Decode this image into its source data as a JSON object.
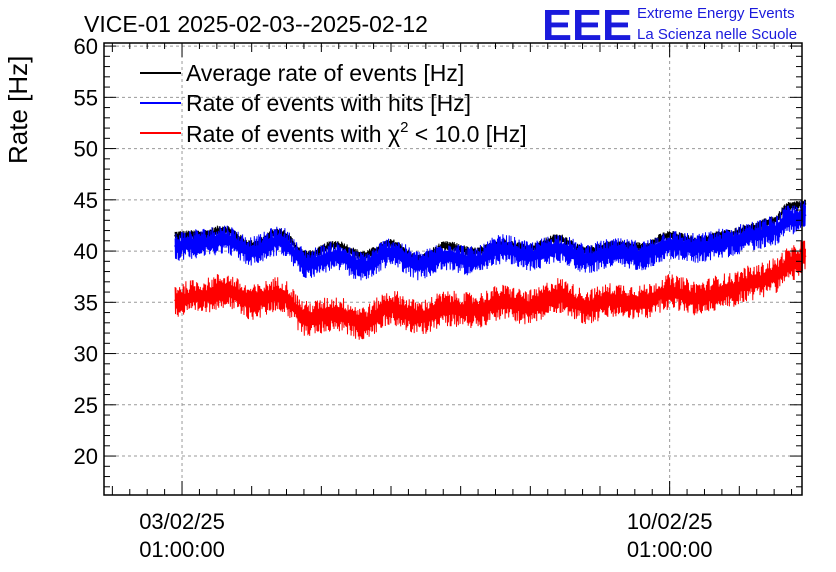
{
  "chart_data": {
    "type": "line",
    "title": "VICE-01 2025-02-03--2025-02-12",
    "xlabel": "",
    "ylabel": "Rate [Hz]",
    "ylim": [
      16.2,
      60.3
    ],
    "yticks": [
      20,
      25,
      30,
      35,
      40,
      45,
      50,
      55,
      60
    ],
    "x_range_days": [
      -1.12,
      8.9
    ],
    "x_ticks": [
      {
        "day": 0,
        "date": "03/02/25",
        "time": "01:00:00"
      },
      {
        "day": 7,
        "date": "10/02/25",
        "time": "01:00:00"
      }
    ],
    "grid": true,
    "legend_position": "top-left",
    "series": [
      {
        "name": "Average rate of events [Hz]",
        "color": "#000000",
        "x_days": [
          -0.1,
          0.3,
          0.6,
          1.0,
          1.4,
          1.8,
          2.2,
          2.6,
          3.0,
          3.4,
          3.8,
          4.2,
          4.6,
          5.0,
          5.4,
          5.8,
          6.2,
          6.6,
          7.0,
          7.4,
          7.8,
          8.2,
          8.5,
          8.7,
          8.95
        ],
        "values": [
          41.5,
          41.6,
          42.1,
          40.6,
          41.8,
          39.6,
          40.6,
          39.6,
          40.7,
          39.2,
          40.5,
          39.9,
          40.7,
          40.3,
          41.2,
          40.0,
          40.6,
          40.4,
          41.5,
          41.0,
          41.6,
          42.3,
          43.0,
          44.3,
          44.6
        ]
      },
      {
        "name": "Rate of events with hits [Hz]",
        "color": "#0000ff",
        "x_days": [
          -0.1,
          0.3,
          0.6,
          1.0,
          1.4,
          1.8,
          2.2,
          2.6,
          3.0,
          3.4,
          3.8,
          4.2,
          4.6,
          5.0,
          5.4,
          5.8,
          6.2,
          6.6,
          7.0,
          7.4,
          7.8,
          8.2,
          8.5,
          8.7,
          8.95
        ],
        "values": [
          40.5,
          40.8,
          41.2,
          40.0,
          41.0,
          38.8,
          39.5,
          38.5,
          39.9,
          38.6,
          39.5,
          39.0,
          40.2,
          39.5,
          40.3,
          39.3,
          39.8,
          39.6,
          40.6,
          40.3,
          40.8,
          41.5,
          42.0,
          43.0,
          43.5
        ]
      },
      {
        "name": "Rate of events with χ² < 10.0 [Hz]",
        "color": "#ff0000",
        "x_days": [
          -0.1,
          0.3,
          0.6,
          1.0,
          1.4,
          1.8,
          2.2,
          2.6,
          3.0,
          3.4,
          3.8,
          4.2,
          4.6,
          5.0,
          5.4,
          5.8,
          6.2,
          6.6,
          7.0,
          7.4,
          7.8,
          8.2,
          8.5,
          8.7,
          8.95
        ],
        "values": [
          35.2,
          35.6,
          36.2,
          35.0,
          35.8,
          33.4,
          33.9,
          33.0,
          34.5,
          33.5,
          34.4,
          34.2,
          35.0,
          34.5,
          35.7,
          34.6,
          35.2,
          35.0,
          36.0,
          35.4,
          36.1,
          36.9,
          37.6,
          38.6,
          39.5
        ]
      }
    ]
  },
  "logo": {
    "mark": "EEE",
    "line1": "Extreme Energy Events",
    "line2": "La Scienza nelle Scuole"
  },
  "legend": {
    "item_black_prefix": "Average rate of events [Hz]",
    "item_blue_prefix": "Rate of events with hits [Hz]",
    "item_red_prefix": "Rate of events with ",
    "item_red_chi": "χ",
    "item_red_sup": "2",
    "item_red_suffix": " < 10.0 [Hz]"
  }
}
